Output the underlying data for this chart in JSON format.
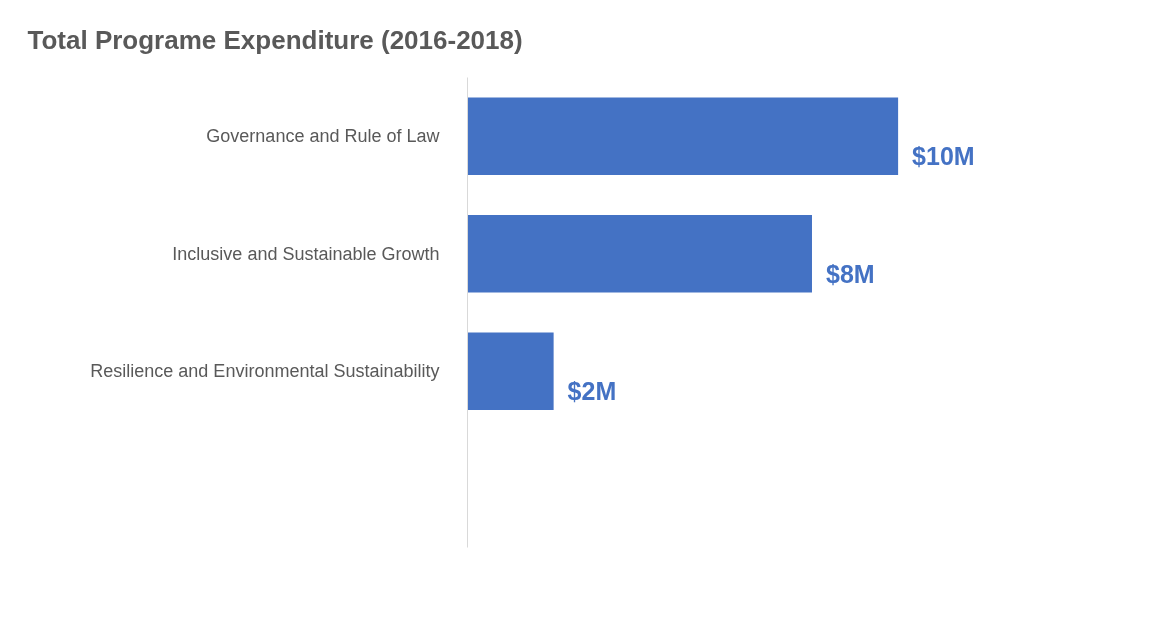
{
  "chart_data": {
    "type": "bar",
    "orientation": "horizontal",
    "title": "Total Programe Expenditure (2016-2018)",
    "categories": [
      "Governance and Rule of Law",
      "Inclusive and Sustainable Growth",
      "Resilience and Environmental Sustainability"
    ],
    "values": [
      10,
      8,
      2
    ],
    "value_labels": [
      "$10M",
      "$8M",
      "$2M"
    ],
    "color": "#4472c4",
    "tick_labels": "y",
    "grid": false
  }
}
